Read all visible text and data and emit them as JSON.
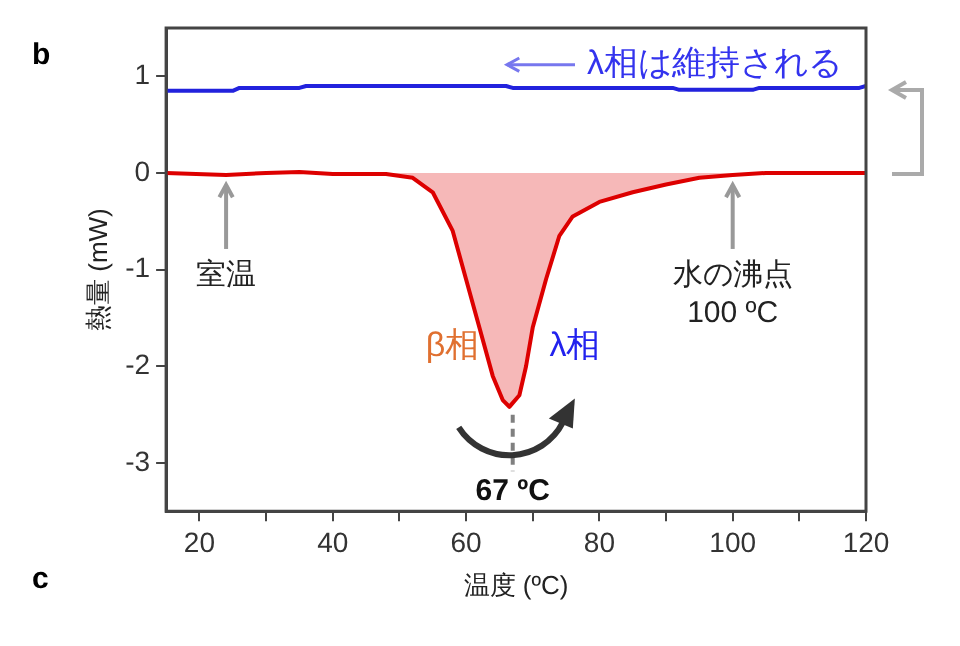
{
  "chart_data": {
    "type": "line",
    "xlabel": "温度 (ºC)",
    "ylabel": "熱量 (mW)",
    "xlim": [
      15,
      120
    ],
    "xticks": [
      20,
      {
        "value": 30,
        "label": null
      },
      40,
      {
        "value": 50,
        "label": null
      },
      60,
      {
        "value": 70,
        "label": null
      },
      80,
      {
        "value": 90,
        "label": null
      },
      100,
      {
        "value": 110,
        "label": null
      },
      120
    ],
    "ylim": [
      -3.5,
      1.5
    ],
    "yticks": [
      -3,
      -2,
      -1,
      0,
      1
    ],
    "grid": false,
    "legend": false,
    "marker": "none",
    "line_style": "solid",
    "series": [
      {
        "type": "line",
        "color": "#2222dd",
        "x": [
          15,
          25,
          26,
          35,
          36,
          66,
          67,
          91,
          92,
          103,
          104,
          119,
          120
        ],
        "values": [
          0.85,
          0.85,
          0.88,
          0.88,
          0.9,
          0.9,
          0.88,
          0.88,
          0.86,
          0.86,
          0.88,
          0.88,
          0.9
        ]
      },
      {
        "type": "area",
        "color": "#dd0000",
        "x": [
          15,
          24,
          30,
          35,
          40,
          48,
          52,
          55,
          58,
          60,
          62,
          64,
          65.5,
          66.5,
          68,
          69,
          70,
          72,
          74,
          76,
          80,
          85,
          90,
          95,
          100,
          105,
          120
        ],
        "values": [
          0,
          -0.02,
          0,
          0.01,
          -0.01,
          -0.01,
          -0.05,
          -0.2,
          -0.6,
          -1.1,
          -1.6,
          -2.1,
          -2.35,
          -2.42,
          -2.3,
          -2.0,
          -1.6,
          -1.1,
          -0.65,
          -0.45,
          -0.3,
          -0.2,
          -0.12,
          -0.05,
          -0.02,
          0,
          0
        ]
      }
    ],
    "ref_lines": [
      {
        "axis": "x",
        "value": 67,
        "label": "67 ºC",
        "color": "#808080",
        "line_style": "dashed"
      }
    ],
    "annotations": [
      "b",
      "c",
      "λ相は維持される",
      "β相",
      "λ相",
      {
        "text": "室温",
        "x": 24,
        "y": 0
      },
      {
        "text": "水の沸点\n100 ºC",
        "x": 100,
        "y": 0
      }
    ]
  }
}
